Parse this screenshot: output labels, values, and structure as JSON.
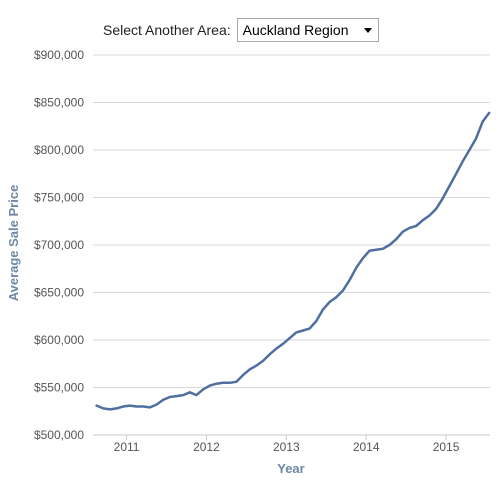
{
  "area_selector": {
    "label": "Select Another Area:",
    "selected": "Auckland Region"
  },
  "colors": {
    "line": "#4f6fa0",
    "axis_text": "#6d87a6",
    "tick_text": "#555555",
    "grid": "#d8d8d8"
  },
  "chart_data": {
    "type": "line",
    "title": "",
    "xlabel": "Year",
    "ylabel": "Average Sale Price",
    "xlim": [
      2010.58,
      2015.55
    ],
    "ylim": [
      500000,
      900000
    ],
    "x_ticks": [
      2011,
      2012,
      2013,
      2014,
      2015
    ],
    "x_tick_labels": [
      "2011",
      "2012",
      "2013",
      "2014",
      "2015"
    ],
    "y_ticks": [
      500000,
      550000,
      600000,
      650000,
      700000,
      750000,
      800000,
      850000,
      900000
    ],
    "y_tick_labels": [
      "$500,000",
      "$550,000",
      "$600,000",
      "$650,000",
      "$700,000",
      "$750,000",
      "$800,000",
      "$850,000",
      "$900,000"
    ],
    "grid": "horizontal",
    "legend": "none",
    "series": [
      {
        "x": [
          2010.625,
          2010.708,
          2010.792,
          2010.875,
          2010.958,
          2011.042,
          2011.125,
          2011.208,
          2011.292,
          2011.375,
          2011.458,
          2011.542,
          2011.625,
          2011.708,
          2011.792,
          2011.875,
          2011.958,
          2012.042,
          2012.125,
          2012.208,
          2012.292,
          2012.375,
          2012.458,
          2012.542,
          2012.625,
          2012.708,
          2012.792,
          2012.875,
          2012.958,
          2013.042,
          2013.125,
          2013.208,
          2013.292,
          2013.375,
          2013.458,
          2013.542,
          2013.625,
          2013.708,
          2013.792,
          2013.875,
          2013.958,
          2014.042,
          2014.125,
          2014.208,
          2014.292,
          2014.375,
          2014.458,
          2014.542,
          2014.625,
          2014.708,
          2014.792,
          2014.875,
          2014.958,
          2015.042,
          2015.125,
          2015.208,
          2015.292,
          2015.375,
          2015.458,
          2015.54
        ],
        "y": [
          531000,
          528000,
          527000,
          528000,
          530000,
          531000,
          530000,
          530000,
          529000,
          532000,
          537000,
          540000,
          541000,
          542000,
          545000,
          542000,
          548000,
          552000,
          554000,
          555000,
          555000,
          556000,
          563000,
          569000,
          573000,
          578000,
          585000,
          591000,
          596000,
          602000,
          608000,
          610000,
          612000,
          620000,
          632000,
          640000,
          645000,
          652000,
          663000,
          676000,
          686000,
          694000,
          695000,
          696000,
          700000,
          706000,
          714000,
          718000,
          720000,
          726000,
          731000,
          738000,
          749000,
          762000,
          775000,
          788000,
          800000,
          812000,
          830000,
          839000
        ]
      }
    ]
  }
}
